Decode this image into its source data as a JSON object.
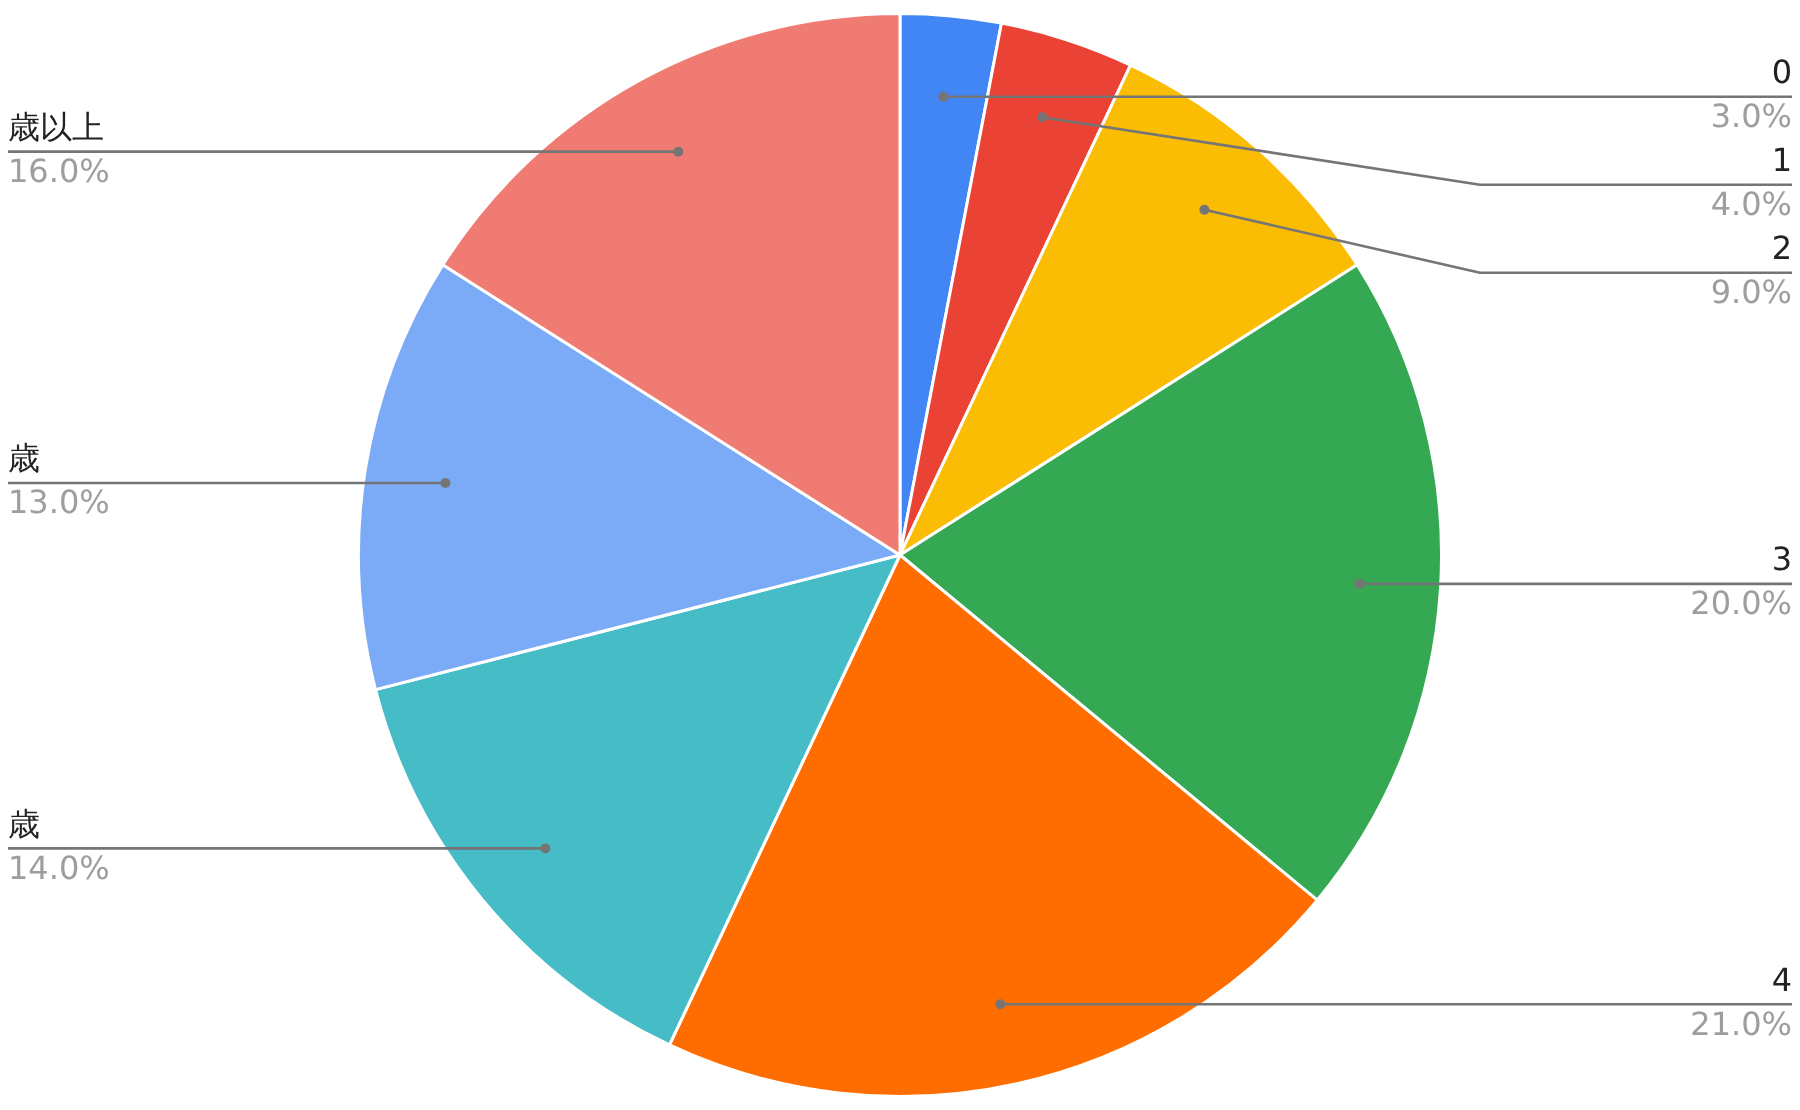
{
  "chart_data": {
    "type": "pie",
    "categories": [
      "0",
      "1",
      "2",
      "3",
      "4",
      "歳",
      "歳",
      "歳以上"
    ],
    "values": [
      3,
      4,
      9,
      20,
      21,
      14,
      13,
      16
    ],
    "value_labels": [
      "3.0%",
      "4.0%",
      "9.0%",
      "20.0%",
      "21.0%",
      "14.0%",
      "13.0%",
      "16.0%"
    ],
    "colors": [
      "#4285f4",
      "#ea4335",
      "#fbbc04",
      "#34a853",
      "#ff6d01",
      "#46bdc6",
      "#7baaf7",
      "#f07b72"
    ],
    "legend": false
  }
}
